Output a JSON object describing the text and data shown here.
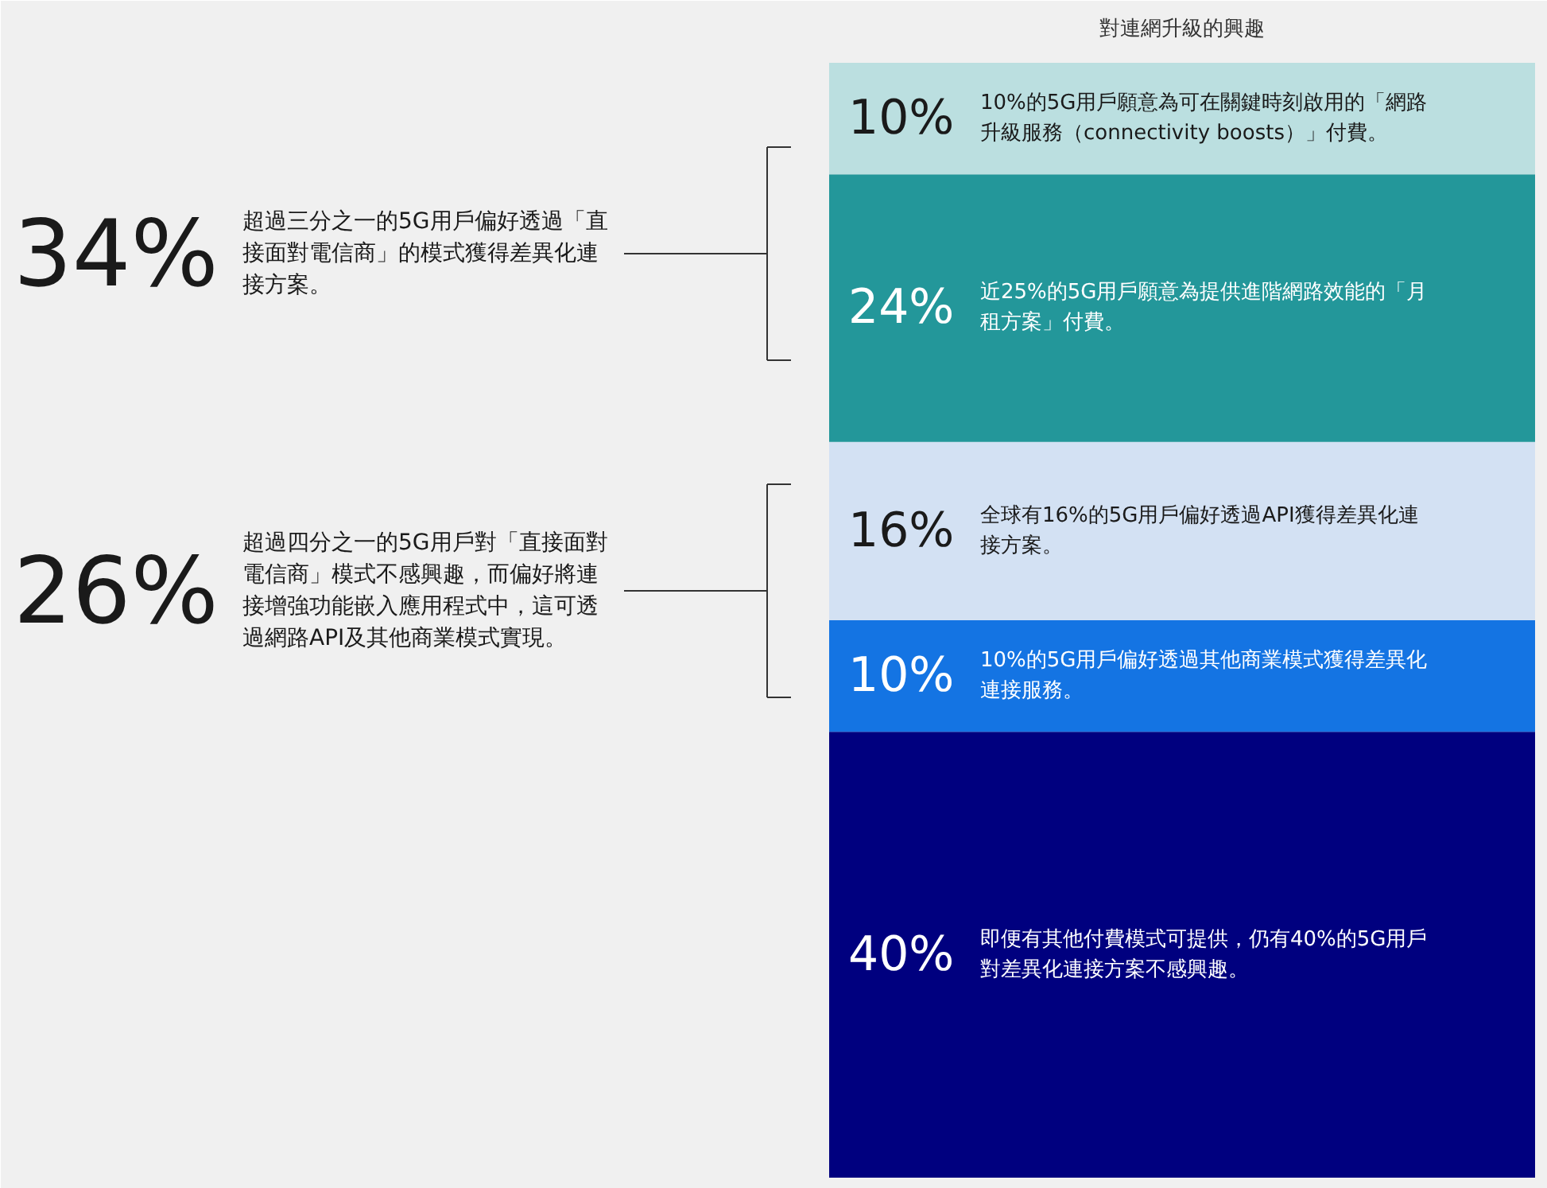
{
  "chart_data": {
    "type": "bar",
    "title": "對連網升級的興趣",
    "stacked": true,
    "categories": [
      null
    ],
    "series": [
      {
        "name": "即便有其他付費模式可提供，仍有40%的5G用戶對差異化連接方案不感興趣。",
        "color": "#00007f",
        "values": [
          40
        ],
        "value_labels": [
          "40%"
        ]
      },
      {
        "name": "10%的5G用戶偏好透過其他商業模式獲得差異化連接服務。",
        "color": "#1474e3",
        "values": [
          10
        ],
        "value_labels": [
          "10%"
        ]
      },
      {
        "name": "全球有16%的5G用戶偏好透過API獲得差異化連接方案。",
        "color": "#d3e1f3",
        "values": [
          16
        ],
        "value_labels": [
          "16%"
        ]
      },
      {
        "name": "近25%的5G用戶願意為提供進階網路效能的「月租方案」付費。",
        "color": "#23979a",
        "values": [
          24
        ],
        "value_labels": [
          "24%"
        ]
      },
      {
        "name": "10%的5G用戶願意為可在關鍵時刻啟用的「網路升級服務（connectivity boosts）」付費。",
        "color": "#bbdfe0",
        "values": [
          10
        ],
        "value_labels": [
          "10%"
        ]
      }
    ],
    "annotations": [
      "34%",
      "超過三分之一的5G用戶偏好透過「直接面對電信商」的模式獲得差異化連接方案。",
      "26%",
      "超過四分之一的5G用戶對「直接面對電信商」模式不感興趣，而偏好將連接增強功能嵌入應用程式中，這可透過網路API及其他商業模式實現。"
    ]
  }
}
